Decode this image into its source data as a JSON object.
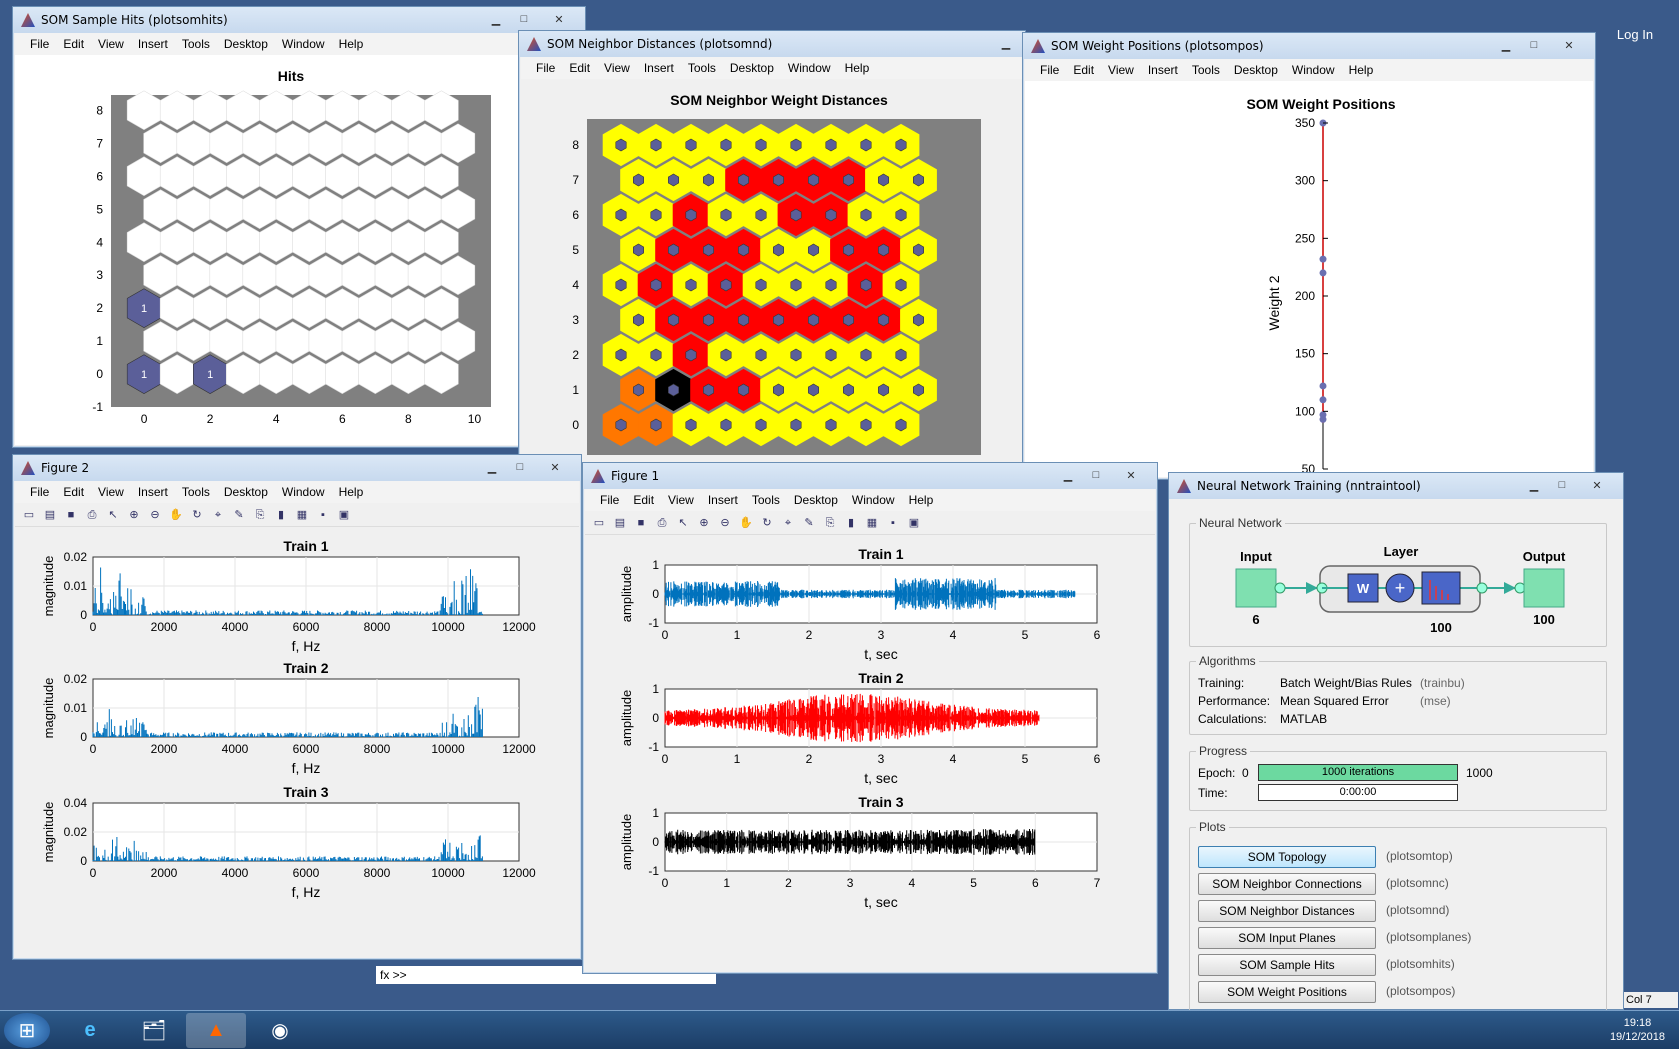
{
  "desktop": {
    "login_label": "Log In"
  },
  "hits_window": {
    "title": "SOM Sample Hits (plotsomhits)",
    "menu": [
      "File",
      "Edit",
      "View",
      "Insert",
      "Tools",
      "Desktop",
      "Window",
      "Help"
    ],
    "plot_title": "Hits",
    "x_ticks": [
      "0",
      "2",
      "4",
      "6",
      "8",
      "10"
    ],
    "y_ticks": [
      "-1",
      "0",
      "1",
      "2",
      "3",
      "4",
      "5",
      "6",
      "7",
      "8"
    ],
    "hit_labels": [
      "1",
      "1",
      "1"
    ]
  },
  "nd_window": {
    "title": "SOM Neighbor Distances (plotsomnd)",
    "menu": [
      "File",
      "Edit",
      "View",
      "Insert",
      "Tools",
      "Desktop",
      "Window",
      "Help"
    ],
    "plot_title": "SOM Neighbor Weight Distances",
    "y_ticks": [
      "0",
      "1",
      "2",
      "3",
      "4",
      "5",
      "6",
      "7",
      "8"
    ]
  },
  "pos_window": {
    "title": "SOM Weight Positions (plotsompos)",
    "menu": [
      "File",
      "Edit",
      "View",
      "Insert",
      "Tools",
      "Desktop",
      "Window",
      "Help"
    ],
    "plot_title": "SOM Weight Positions",
    "ylabel": "Weight 2",
    "y_ticks": [
      "50",
      "100",
      "150",
      "200",
      "250",
      "300",
      "350"
    ]
  },
  "fig2": {
    "title": "Figure 2",
    "menu": [
      "File",
      "Edit",
      "View",
      "Insert",
      "Tools",
      "Desktop",
      "Window",
      "Help"
    ],
    "xlabel": "f, Hz",
    "ylabel": "magnitude",
    "x_ticks": [
      "0",
      "2000",
      "4000",
      "6000",
      "8000",
      "10000",
      "12000"
    ],
    "plots": [
      {
        "title": "Train 1",
        "y_ticks": [
          "0",
          "0.01",
          "0.02"
        ]
      },
      {
        "title": "Train 2",
        "y_ticks": [
          "0",
          "0.01",
          "0.02"
        ]
      },
      {
        "title": "Train 3",
        "y_ticks": [
          "0",
          "0.02",
          "0.04"
        ]
      }
    ]
  },
  "fig1": {
    "title": "Figure 1",
    "menu": [
      "File",
      "Edit",
      "View",
      "Insert",
      "Tools",
      "Desktop",
      "Window",
      "Help"
    ],
    "xlabel": "t, sec",
    "ylabel": "amplitude",
    "plots": [
      {
        "title": "Train 1",
        "x_ticks": [
          "0",
          "1",
          "2",
          "3",
          "4",
          "5",
          "6"
        ],
        "y_ticks": [
          "-1",
          "0",
          "1"
        ],
        "color": "#0072bd"
      },
      {
        "title": "Train 2",
        "x_ticks": [
          "0",
          "1",
          "2",
          "3",
          "4",
          "5",
          "6"
        ],
        "y_ticks": [
          "-1",
          "0",
          "1"
        ],
        "color": "#ff0000"
      },
      {
        "title": "Train 3",
        "x_ticks": [
          "0",
          "1",
          "2",
          "3",
          "4",
          "5",
          "6",
          "7"
        ],
        "y_ticks": [
          "-1",
          "0",
          "1"
        ],
        "color": "#000000"
      }
    ]
  },
  "nntool": {
    "title": "Neural Network Training (nntraintool)",
    "nn_group": "Neural Network",
    "input_label": "Input",
    "input_size": "6",
    "layer_label": "Layer",
    "layer_size": "100",
    "output_label": "Output",
    "output_size": "100",
    "w_label": "W",
    "algorithms_group": "Algorithms",
    "algorithms": [
      {
        "label": "Training:",
        "value": "Batch Weight/Bias Rules",
        "fn": "(trainbu)"
      },
      {
        "label": "Performance:",
        "value": "Mean Squared Error",
        "fn": "(mse)"
      },
      {
        "label": "Calculations:",
        "value": "MATLAB",
        "fn": ""
      }
    ],
    "progress_group": "Progress",
    "epoch_label": "Epoch:",
    "epoch_start": "0",
    "epoch_bar": "1000 iterations",
    "epoch_end": "1000",
    "epoch_fraction": 1.0,
    "time_label": "Time:",
    "time_value": "0:00:00",
    "plots_group": "Plots",
    "plot_buttons": [
      {
        "label": "SOM Topology",
        "fn": "(plotsomtop)"
      },
      {
        "label": "SOM Neighbor Connections",
        "fn": "(plotsomnc)"
      },
      {
        "label": "SOM Neighbor Distances",
        "fn": "(plotsomnd)"
      },
      {
        "label": "SOM Input Planes",
        "fn": "(plotsomplanes)"
      },
      {
        "label": "SOM Sample Hits",
        "fn": "(plotsomhits)"
      },
      {
        "label": "SOM Weight Positions",
        "fn": "(plotsompos)"
      }
    ]
  },
  "matlab": {
    "fx_prompt": "fx >>",
    "col_label": "Col",
    "col_value": "7"
  },
  "clock": {
    "time": "19:18",
    "date": "19/12/2018"
  }
}
